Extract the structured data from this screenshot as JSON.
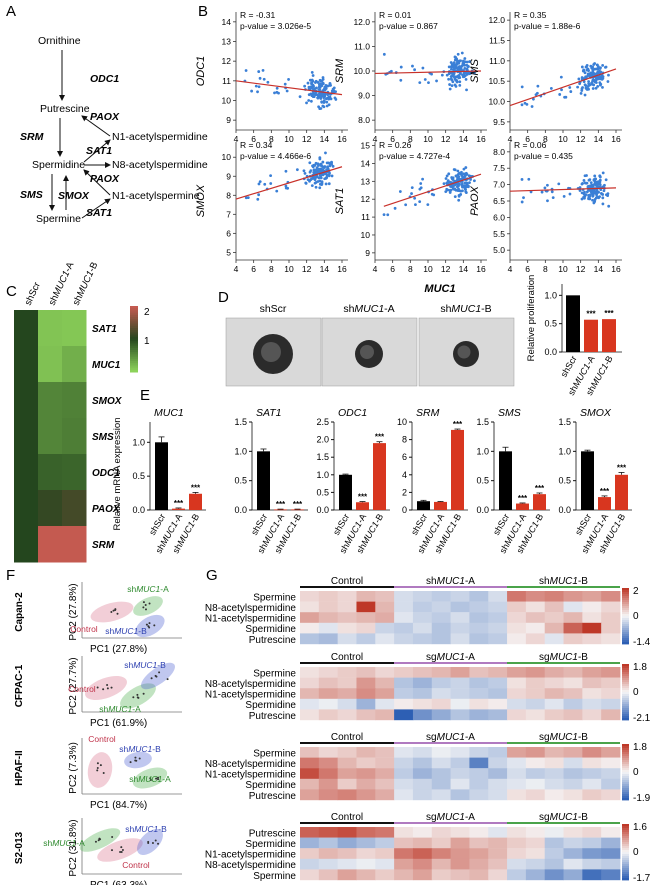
{
  "panel_letters": [
    "A",
    "B",
    "C",
    "D",
    "E",
    "F",
    "G"
  ],
  "panelA": {
    "metabolites": [
      "Ornithine",
      "Putrescine",
      "Spermidine",
      "Spermine",
      "N1-acetylspermidine",
      "N8-acetylspermidine",
      "N1-acetylspermine"
    ],
    "enzymes": [
      "ODC1",
      "PAOX",
      "SRM",
      "SAT1",
      "PAOX",
      "SMS",
      "SMOX",
      "SAT1"
    ]
  },
  "panelB": {
    "xlabel": "MUC1",
    "plots": [
      {
        "gene": "ODC1",
        "r": "R = -0.31",
        "p": "p-value = 3.026e-5",
        "yticks": [
          "9",
          "10",
          "11",
          "12",
          "13",
          "14"
        ],
        "ylim": [
          8.5,
          14.5
        ],
        "line": [
          [
            4,
            11.0
          ],
          [
            16,
            10.3
          ]
        ]
      },
      {
        "gene": "SRM",
        "r": "R = 0.01",
        "p": "p-value = 0.867",
        "yticks": [
          "8.0",
          "9.0",
          "10.0",
          "11.0",
          "12.0"
        ],
        "ylim": [
          7.6,
          12.4
        ],
        "line": [
          [
            4,
            9.9
          ],
          [
            16,
            10.0
          ]
        ]
      },
      {
        "gene": "SMS",
        "r": "R = 0.35",
        "p": "p-value = 1.88e-6",
        "yticks": [
          "9.5",
          "10.0",
          "10.5",
          "11.0",
          "11.5",
          "12.0"
        ],
        "ylim": [
          9.3,
          12.2
        ],
        "line": [
          [
            4,
            9.9
          ],
          [
            16,
            10.8
          ]
        ]
      },
      {
        "gene": "SMOX",
        "r": "R = 0.34",
        "p": "p-value = 4.466e-6",
        "yticks": [
          "5",
          "6",
          "7",
          "8",
          "9",
          "10"
        ],
        "ylim": [
          4.6,
          10.8
        ],
        "line": [
          [
            4,
            7.8
          ],
          [
            16,
            9.5
          ]
        ]
      },
      {
        "gene": "SAT1",
        "r": "R = 0.26",
        "p": "p-value = 4.727e-4",
        "yticks": [
          "9",
          "10",
          "11",
          "12",
          "13",
          "14",
          "15"
        ],
        "ylim": [
          8.6,
          15.2
        ],
        "line": [
          [
            5,
            11.6
          ],
          [
            16,
            13.4
          ]
        ]
      },
      {
        "gene": "PAOX",
        "r": "R = 0.06",
        "p": "p-value = 0.435",
        "yticks": [
          "5.0",
          "5.5",
          "6.0",
          "6.5",
          "7.0",
          "7.5",
          "8.0"
        ],
        "ylim": [
          4.7,
          8.3
        ],
        "line": [
          [
            4,
            6.8
          ],
          [
            16,
            6.9
          ]
        ]
      }
    ],
    "xticks": [
      "4",
      "6",
      "8",
      "10",
      "12",
      "14",
      "16"
    ]
  },
  "panelC": {
    "columns": [
      "shScr",
      "shMUC1-A",
      "shMUC1-B"
    ],
    "rows": [
      "SAT1",
      "MUC1",
      "SMOX",
      "SMS",
      "ODC1",
      "PAOX",
      "SRM"
    ],
    "values": [
      [
        1,
        0.1,
        0.08
      ],
      [
        1,
        0.12,
        0.25
      ],
      [
        1,
        0.55,
        0.58
      ],
      [
        1,
        0.55,
        0.6
      ],
      [
        1,
        0.8,
        0.78
      ],
      [
        1,
        1.1,
        1.2
      ],
      [
        1,
        2.0,
        2.1
      ]
    ],
    "legend_ticks": [
      "2",
      "1"
    ]
  },
  "panelD": {
    "image_labels": [
      "shScr",
      "shMUC1-A",
      "shMUC1-B"
    ],
    "chart": {
      "ylabel": "Relative proliferation",
      "categories": [
        "shScr",
        "shMUC1-A",
        "shMUC1-B"
      ],
      "values": [
        1.0,
        0.57,
        0.58
      ],
      "errors": [
        0.01,
        0.01,
        0.01
      ],
      "yticks": [
        "0.0",
        "0.5",
        "1.0"
      ],
      "ylim": [
        0,
        1.2
      ],
      "sig": [
        "",
        "***",
        "***"
      ]
    }
  },
  "chart_data": [
    {
      "type": "bar",
      "title": "MUC1",
      "ylabel": "Relative mRNA expression",
      "categories": [
        "shScr",
        "shMUC1-A",
        "shMUC1-B"
      ],
      "values": [
        1.0,
        0.02,
        0.24
      ],
      "errors": [
        0.08,
        0.01,
        0.02
      ],
      "yticks": [
        "0.0",
        "0.5",
        "1.0"
      ],
      "ylim": [
        0,
        1.3
      ],
      "sig": [
        "",
        "***",
        "***"
      ]
    },
    {
      "type": "bar",
      "title": "SAT1",
      "categories": [
        "shScr",
        "shMUC1-A",
        "shMUC1-B"
      ],
      "values": [
        1.0,
        0.01,
        0.01
      ],
      "errors": [
        0.04,
        0.005,
        0.005
      ],
      "yticks": [
        "0.0",
        "0.5",
        "1.0",
        "1.5"
      ],
      "ylim": [
        0,
        1.5
      ],
      "sig": [
        "",
        "***",
        "***"
      ]
    },
    {
      "type": "bar",
      "title": "ODC1",
      "categories": [
        "shScr",
        "shMUC1-A",
        "shMUC1-B"
      ],
      "values": [
        1.0,
        0.22,
        1.9
      ],
      "errors": [
        0.02,
        0.02,
        0.04
      ],
      "yticks": [
        "0.0",
        "0.5",
        "1.0",
        "1.5",
        "2.0",
        "2.5"
      ],
      "ylim": [
        0,
        2.5
      ],
      "sig": [
        "",
        "***",
        "***"
      ]
    },
    {
      "type": "bar",
      "title": "SRM",
      "categories": [
        "shScr",
        "shMUC1-A",
        "shMUC1-B"
      ],
      "values": [
        1.0,
        0.92,
        9.1
      ],
      "errors": [
        0.1,
        0.05,
        0.1
      ],
      "yticks": [
        "0",
        "2",
        "4",
        "6",
        "8",
        "10"
      ],
      "ylim": [
        0,
        10
      ],
      "sig": [
        "",
        "",
        "***"
      ]
    },
    {
      "type": "bar",
      "title": "SMS",
      "categories": [
        "shScr",
        "shMUC1-A",
        "shMUC1-B"
      ],
      "values": [
        1.0,
        0.11,
        0.27
      ],
      "errors": [
        0.07,
        0.01,
        0.02
      ],
      "yticks": [
        "0.0",
        "0.5",
        "1.0",
        "1.5"
      ],
      "ylim": [
        0,
        1.5
      ],
      "sig": [
        "",
        "***",
        "***"
      ]
    },
    {
      "type": "bar",
      "title": "SMOX",
      "categories": [
        "shScr",
        "shMUC1-A",
        "shMUC1-B"
      ],
      "values": [
        1.0,
        0.22,
        0.6
      ],
      "errors": [
        0.02,
        0.02,
        0.04
      ],
      "yticks": [
        "0.0",
        "0.5",
        "1.0",
        "1.5"
      ],
      "ylim": [
        0,
        1.5
      ],
      "sig": [
        "",
        "***",
        "***"
      ]
    }
  ],
  "panelF": {
    "rows": [
      {
        "cell": "Capan-2",
        "pc1": "PC1 (27.8%)",
        "pc2": "PC2 (27.8%)",
        "groups": [
          "Control",
          "shMUC1-A",
          "shMUC1-B"
        ]
      },
      {
        "cell": "CFPAC-1",
        "pc1": "PC1 (61.9%)",
        "pc2": "PC2 (27.7%)",
        "groups": [
          "Control",
          "shMUC1-A",
          "shMUC1-B"
        ]
      },
      {
        "cell": "HPAF-II",
        "pc1": "PC1 (84.7%)",
        "pc2": "PC2 (7.3%)",
        "groups": [
          "Control",
          "shMUC1-A",
          "shMUC1-B"
        ]
      },
      {
        "cell": "S2-013",
        "pc1": "PC1 (63.3%)",
        "pc2": "PC2 (31.8%)",
        "groups": [
          "Control",
          "shMUC1-A",
          "shMUC1-B"
        ]
      }
    ],
    "group_colors": [
      "#d9728c",
      "#4dae4d",
      "#4a5fd0"
    ]
  },
  "panelG": {
    "blocks": [
      {
        "groups": [
          "Control",
          "shMUC1-A",
          "shMUC1-B"
        ],
        "rows": [
          "Spermine",
          "N8-acetylspermidine",
          "N1-acetylspermidine",
          "Spermidine",
          "Putrescine"
        ],
        "scale": [
          "2",
          "0",
          "-1.4"
        ]
      },
      {
        "groups": [
          "Control",
          "sgMUC1-A",
          "sgMUC1-B"
        ],
        "rows": [
          "Spermine",
          "N8-acetylspermidine",
          "N1-acetylspermidine",
          "Spermidine",
          "Putrescine"
        ],
        "scale": [
          "1.8",
          "0",
          "-2.1"
        ]
      },
      {
        "groups": [
          "Control",
          "sgMUC1-A",
          "sgMUC1-B"
        ],
        "rows": [
          "Spermine",
          "N8-acetylspermidine",
          "N1-acetylspermidine",
          "Spermidine",
          "Putrescine"
        ],
        "scale": [
          "1.8",
          "0",
          "-1.9"
        ]
      },
      {
        "groups": [
          "Control",
          "sgMUC1-A",
          "sgMUC1-B"
        ],
        "rows": [
          "Putrescine",
          "Spermidine",
          "N1-acetylspermidine",
          "N8-acetylspermidine",
          "Spermine"
        ],
        "scale": [
          "1.6",
          "0",
          "-1.7"
        ]
      }
    ],
    "group_bar_colors": [
      "#111111",
      "#b07ac0",
      "#4aa34a"
    ]
  },
  "colors": {
    "bar_ctrl": "#000000",
    "bar_kd": "#d8361f",
    "scatter": "#3a7fd6",
    "fit": "#c8312a"
  }
}
